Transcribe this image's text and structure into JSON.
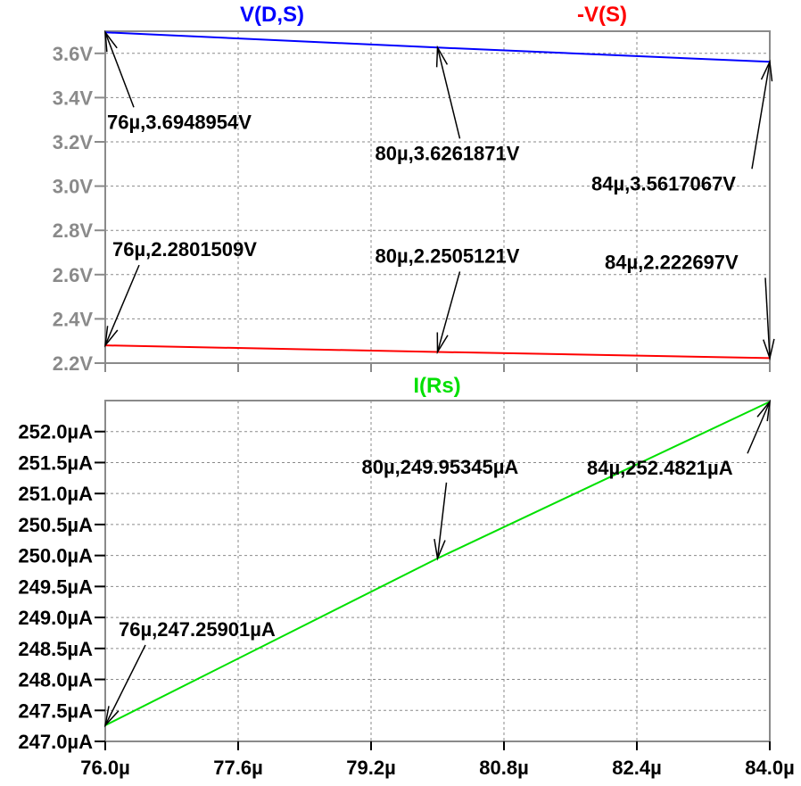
{
  "chart_data": [
    {
      "type": "line",
      "x_unit": "µs",
      "x": [
        76,
        80,
        84
      ],
      "xlim": [
        76,
        84
      ],
      "ylim": [
        2.2,
        3.7
      ],
      "y_ticks": [
        2.2,
        2.4,
        2.6,
        2.8,
        3.0,
        3.2,
        3.4,
        3.6
      ],
      "y_tick_labels": [
        "2.2V",
        "2.4V",
        "2.6V",
        "2.8V",
        "3.0V",
        "3.2V",
        "3.4V",
        "3.6V"
      ],
      "grid": true,
      "series": [
        {
          "name": "V(D,S)",
          "color": "#0000ff",
          "values": [
            3.6948954,
            3.6261871,
            3.5617067
          ]
        },
        {
          "name": "-V(S)",
          "color": "#ff0000",
          "values": [
            2.2801509,
            2.2505121,
            2.222697
          ]
        }
      ],
      "annotations": [
        {
          "series": 0,
          "x": 76,
          "y": 3.6948954,
          "label": "76µ,3.6948954V"
        },
        {
          "series": 0,
          "x": 80,
          "y": 3.6261871,
          "label": "80µ,3.6261871V"
        },
        {
          "series": 0,
          "x": 84,
          "y": 3.5617067,
          "label": "84µ,3.5617067V"
        },
        {
          "series": 1,
          "x": 76,
          "y": 2.2801509,
          "label": "76µ,2.2801509V"
        },
        {
          "series": 1,
          "x": 80,
          "y": 2.2505121,
          "label": "80µ,2.2505121V"
        },
        {
          "series": 1,
          "x": 84,
          "y": 2.222697,
          "label": "84µ,2.222697V"
        }
      ]
    },
    {
      "type": "line",
      "x_unit": "µs",
      "x": [
        76,
        80,
        84
      ],
      "xlim": [
        76,
        84
      ],
      "ylim": [
        247.0,
        252.5
      ],
      "y_ticks": [
        247.0,
        247.5,
        248.0,
        248.5,
        249.0,
        249.5,
        250.0,
        250.5,
        251.0,
        251.5,
        252.0
      ],
      "y_tick_labels": [
        "247.0µA",
        "247.5µA",
        "248.0µA",
        "248.5µA",
        "249.0µA",
        "249.5µA",
        "250.0µA",
        "250.5µA",
        "251.0µA",
        "251.5µA",
        "252.0µA"
      ],
      "x_ticks": [
        76.0,
        77.6,
        79.2,
        80.8,
        82.4,
        84.0
      ],
      "x_tick_labels": [
        "76.0µ",
        "77.6µ",
        "79.2µ",
        "80.8µ",
        "82.4µ",
        "84.0µ"
      ],
      "grid": true,
      "series": [
        {
          "name": "I(Rs)",
          "color": "#00e000",
          "values": [
            247.25901,
            249.95345,
            252.4821
          ]
        }
      ],
      "annotations": [
        {
          "series": 0,
          "x": 76,
          "y": 247.25901,
          "label": "76µ,247.25901µA"
        },
        {
          "series": 0,
          "x": 80,
          "y": 249.95345,
          "label": "80µ,249.95345µA"
        },
        {
          "series": 0,
          "x": 84,
          "y": 252.4821,
          "label": "84µ,252.4821µA"
        }
      ]
    }
  ]
}
